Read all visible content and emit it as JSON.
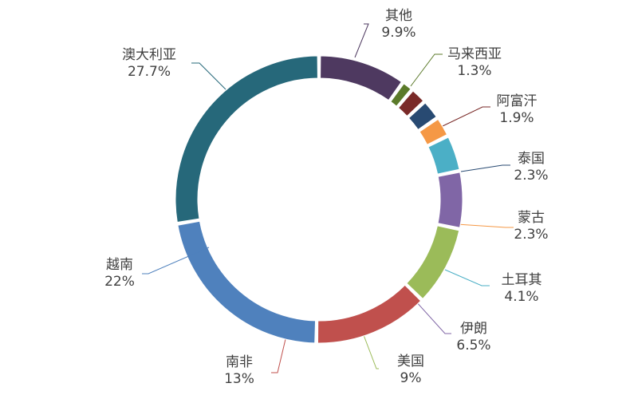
{
  "chart_data": {
    "type": "pie",
    "style": "donut",
    "start_angle_deg": 0,
    "direction": "clockwise",
    "slices": [
      {
        "label": "其他",
        "value_label": "9.9%",
        "value": 9.9,
        "color": "#4e3960"
      },
      {
        "label": "马来西亚",
        "value_label": "1.3%",
        "value": 1.3,
        "color": "#5b7a2a"
      },
      {
        "label": "阿富汗",
        "value_label": "1.9%",
        "value": 1.9,
        "color": "#7a2a28"
      },
      {
        "label": "泰国",
        "value_label": "2.3%",
        "value": 2.3,
        "color": "#284a72"
      },
      {
        "label": "蒙古",
        "value_label": "2.3%",
        "value": 2.3,
        "color": "#f59845"
      },
      {
        "label": "土耳其",
        "value_label": "4.1%",
        "value": 4.1,
        "color": "#4bafc6"
      },
      {
        "label": "伊朗",
        "value_label": "6.5%",
        "value": 6.5,
        "color": "#8066a6"
      },
      {
        "label": "美国",
        "value_label": "9%",
        "value": 9,
        "color": "#9bbb59"
      },
      {
        "label": "南非",
        "value_label": "13%",
        "value": 13,
        "color": "#c0504d"
      },
      {
        "label": "越南",
        "value_label": "22%",
        "value": 22,
        "color": "#4f81bd"
      },
      {
        "label": "澳大利亚",
        "value_label": "27.7%",
        "value": 27.7,
        "color": "#26687a"
      }
    ]
  }
}
